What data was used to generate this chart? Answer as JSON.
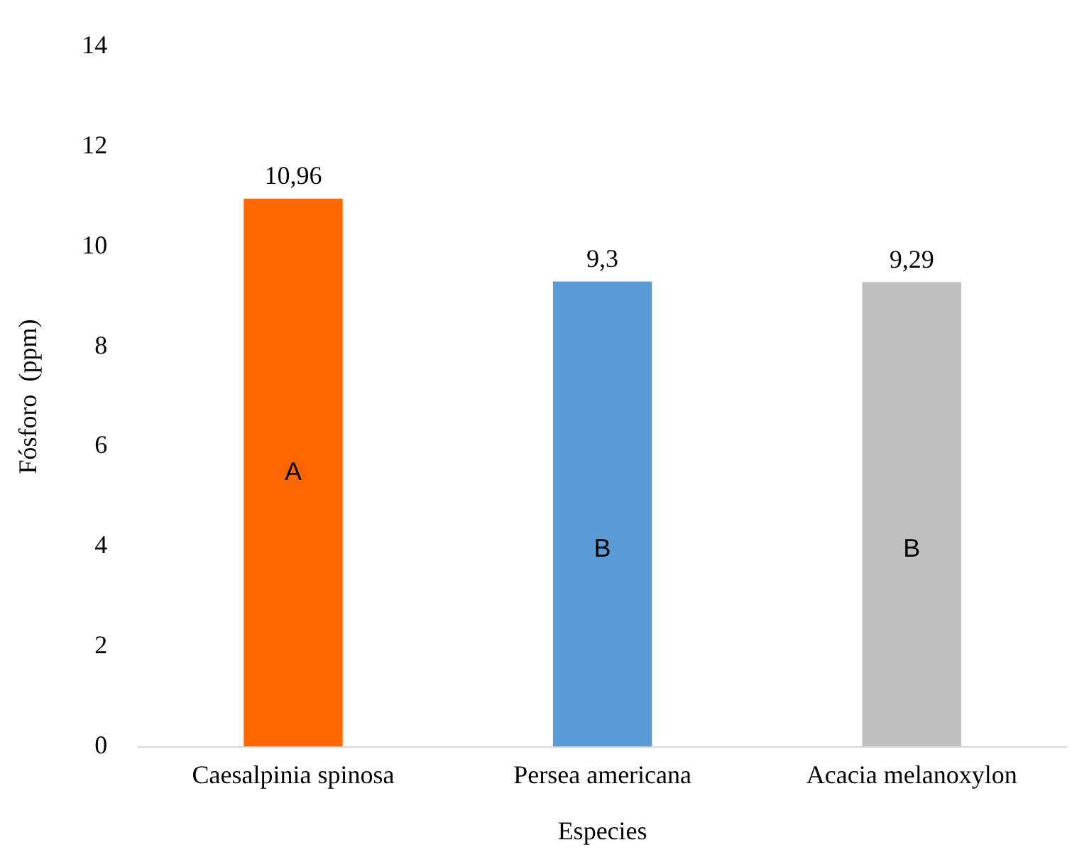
{
  "chart_data": {
    "type": "bar",
    "xlabel": "Especies",
    "ylabel": "Fósforo  (ppm)",
    "categories": [
      "Caesalpinia spinosa",
      "Persea americana",
      "Acacia melanoxylon"
    ],
    "values": [
      10.96,
      9.3,
      9.29
    ],
    "colors": [
      "#ff6600",
      "#5b9bd5",
      "#bfbfbf"
    ],
    "value_labels": [
      "10,96",
      "9,3",
      "9,29"
    ],
    "annotations": [
      "A",
      "B",
      "B"
    ],
    "ylim": [
      0,
      14
    ],
    "yticks": [
      0,
      2,
      4,
      6,
      8,
      10,
      12,
      14
    ],
    "grid": false,
    "legend": false
  }
}
